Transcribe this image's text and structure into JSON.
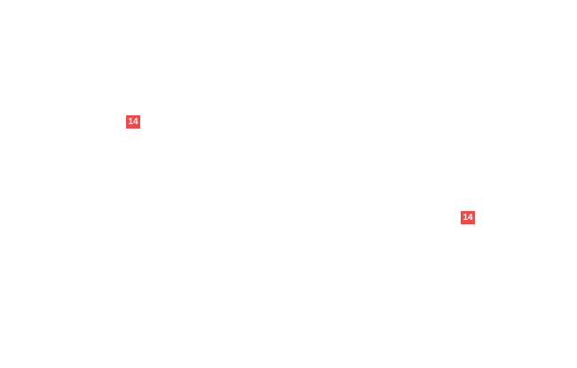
{
  "page": {
    "background": "#ffffff"
  },
  "badges": {
    "accent_color": "#e84c4c",
    "text_color": "#ffffff",
    "items": [
      {
        "label": "14"
      },
      {
        "label": "14"
      }
    ]
  }
}
